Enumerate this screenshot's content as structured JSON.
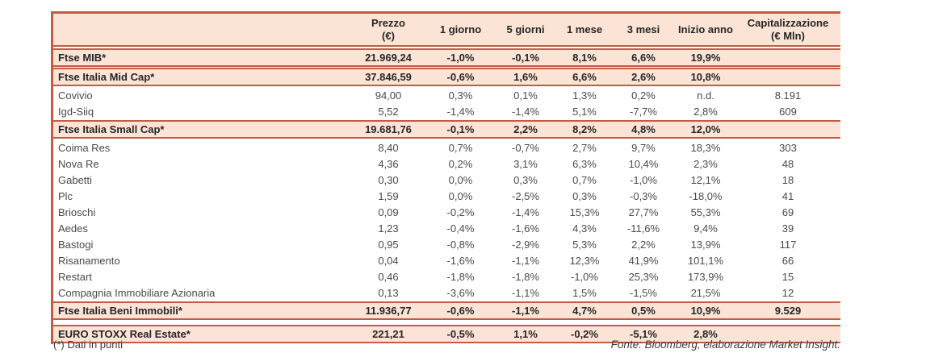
{
  "colors": {
    "row_fill": "#fbe3d6",
    "border": "#c55a45",
    "text": "#3e3e3e",
    "bold_text": "#262626"
  },
  "table": {
    "columns": [
      {
        "key": "name",
        "label": "",
        "label2": ""
      },
      {
        "key": "prezzo",
        "label": "Prezzo",
        "label2": "(€)"
      },
      {
        "key": "g1",
        "label": "1 giorno",
        "label2": ""
      },
      {
        "key": "g5",
        "label": "5 giorni",
        "label2": ""
      },
      {
        "key": "m1",
        "label": "1 mese",
        "label2": ""
      },
      {
        "key": "m3",
        "label": "3 mesi",
        "label2": ""
      },
      {
        "key": "inizio",
        "label": "Inizio anno",
        "label2": ""
      },
      {
        "key": "cap",
        "label": "Capitalizzazione",
        "label2": "(€ Mln)"
      }
    ],
    "rows": [
      {
        "type": "index",
        "name": "Ftse MIB*",
        "prezzo": "21.969,24",
        "g1": "-1,0%",
        "g5": "-0,1%",
        "m1": "8,1%",
        "m3": "6,6%",
        "inizio": "19,9%",
        "cap": ""
      },
      {
        "type": "index",
        "name": "Ftse Italia Mid Cap*",
        "prezzo": "37.846,59",
        "g1": "-0,6%",
        "g5": "1,6%",
        "m1": "6,6%",
        "m3": "2,6%",
        "inizio": "10,8%",
        "cap": ""
      },
      {
        "type": "stock",
        "name": "Covivio",
        "prezzo": "94,00",
        "g1": "0,3%",
        "g5": "0,1%",
        "m1": "1,3%",
        "m3": "0,2%",
        "inizio": "n.d.",
        "cap": "8.191"
      },
      {
        "type": "stock",
        "name": "Igd-Siiq",
        "prezzo": "5,52",
        "g1": "-1,4%",
        "g5": "-1,4%",
        "m1": "5,1%",
        "m3": "-7,7%",
        "inizio": "2,8%",
        "cap": "609"
      },
      {
        "type": "index",
        "name": "Ftse Italia Small Cap*",
        "prezzo": "19.681,76",
        "g1": "-0,1%",
        "g5": "2,2%",
        "m1": "8,2%",
        "m3": "4,8%",
        "inizio": "12,0%",
        "cap": ""
      },
      {
        "type": "stock",
        "name": "Coima Res",
        "prezzo": "8,40",
        "g1": "0,7%",
        "g5": "-0,7%",
        "m1": "2,7%",
        "m3": "9,7%",
        "inizio": "18,3%",
        "cap": "303"
      },
      {
        "type": "stock",
        "name": "Nova Re",
        "prezzo": "4,36",
        "g1": "0,2%",
        "g5": "3,1%",
        "m1": "6,3%",
        "m3": "10,4%",
        "inizio": "2,3%",
        "cap": "48"
      },
      {
        "type": "stock",
        "name": "Gabetti",
        "prezzo": "0,30",
        "g1": "0,0%",
        "g5": "0,3%",
        "m1": "0,7%",
        "m3": "-1,0%",
        "inizio": "12,1%",
        "cap": "18"
      },
      {
        "type": "stock",
        "name": "Plc",
        "prezzo": "1,59",
        "g1": "0,0%",
        "g5": "-2,5%",
        "m1": "0,3%",
        "m3": "-0,3%",
        "inizio": "-18,0%",
        "cap": "41"
      },
      {
        "type": "stock",
        "name": "Brioschi",
        "prezzo": "0,09",
        "g1": "-0,2%",
        "g5": "-1,4%",
        "m1": "15,3%",
        "m3": "27,7%",
        "inizio": "55,3%",
        "cap": "69"
      },
      {
        "type": "stock",
        "name": "Aedes",
        "prezzo": "1,23",
        "g1": "-0,4%",
        "g5": "-1,6%",
        "m1": "4,3%",
        "m3": "-11,6%",
        "inizio": "9,4%",
        "cap": "39"
      },
      {
        "type": "stock",
        "name": "Bastogi",
        "prezzo": "0,95",
        "g1": "-0,8%",
        "g5": "-2,9%",
        "m1": "5,3%",
        "m3": "2,2%",
        "inizio": "13,9%",
        "cap": "117"
      },
      {
        "type": "stock",
        "name": "Risanamento",
        "prezzo": "0,04",
        "g1": "-1,6%",
        "g5": "-1,1%",
        "m1": "12,3%",
        "m3": "41,9%",
        "inizio": "101,1%",
        "cap": "66"
      },
      {
        "type": "stock",
        "name": "Restart",
        "prezzo": "0,46",
        "g1": "-1,8%",
        "g5": "-1,8%",
        "m1": "-1,0%",
        "m3": "25,3%",
        "inizio": "173,9%",
        "cap": "15"
      },
      {
        "type": "stock",
        "name": "Compagnia Immobiliare Azionaria",
        "prezzo": "0,13",
        "g1": "-3,6%",
        "g5": "-1,1%",
        "m1": "1,5%",
        "m3": "-1,5%",
        "inizio": "21,5%",
        "cap": "12"
      },
      {
        "type": "index",
        "name": "Ftse Italia Beni Immobili*",
        "prezzo": "11.936,77",
        "g1": "-0,6%",
        "g5": "-1,1%",
        "m1": "4,7%",
        "m3": "0,5%",
        "inizio": "10,9%",
        "cap": "9.529"
      },
      {
        "type": "index",
        "gap_before": true,
        "name": "EURO STOXX Real Estate*",
        "prezzo": "221,21",
        "g1": "-0,5%",
        "g5": "1,1%",
        "m1": "-0,2%",
        "m3": "-5,1%",
        "inizio": "2,8%",
        "cap": ""
      }
    ]
  },
  "footer": {
    "footnote": "(*) Dati in punti",
    "source": "Fonte: Bloomberg, elaborazione Market Insight."
  }
}
